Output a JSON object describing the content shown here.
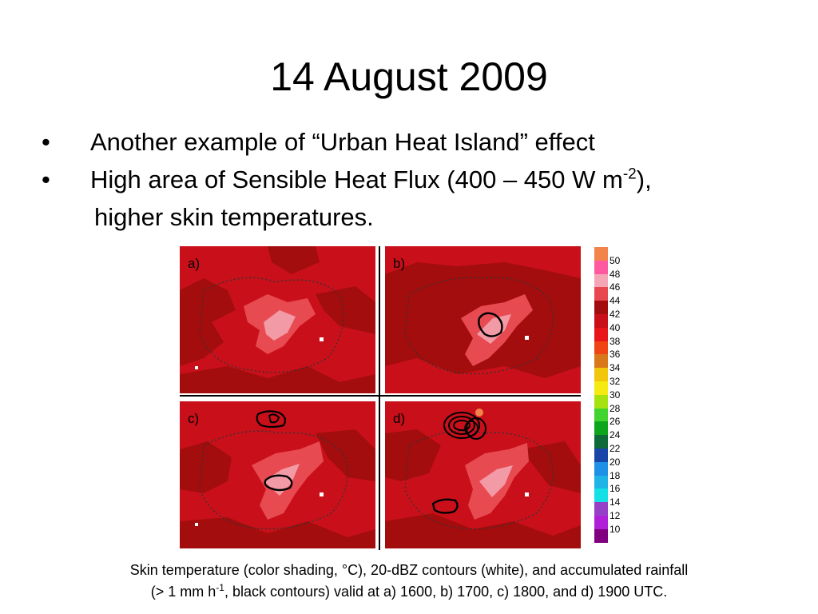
{
  "slide": {
    "title": "14 August 2009",
    "bullets": [
      {
        "mark": "•",
        "text": "Another example of “Urban Heat Island” effect"
      },
      {
        "mark": "•",
        "pre": "High area of Sensible Heat Flux (400 – 450 W m",
        "sup": "-2",
        "post": "),",
        "continuation": "higher skin temperatures."
      }
    ]
  },
  "panels": [
    {
      "label": "a)"
    },
    {
      "label": "b)"
    },
    {
      "label": "c)"
    },
    {
      "label": "d)"
    }
  ],
  "legend": {
    "ticks": [
      "50",
      "48",
      "46",
      "44",
      "42",
      "40",
      "38",
      "36",
      "34",
      "32",
      "30",
      "28",
      "26",
      "24",
      "22",
      "20",
      "18",
      "16",
      "14",
      "12",
      "10"
    ],
    "colors": [
      "#f2834a",
      "#ff5aa0",
      "#f5a6b6",
      "#e8474f",
      "#a30d0d",
      "#c9101a",
      "#e8161a",
      "#f04414",
      "#d8781a",
      "#f2c60a",
      "#f5ea12",
      "#a5e20f",
      "#42d42e",
      "#0da51c",
      "#0f6a3a",
      "#1a45a8",
      "#1e90e6",
      "#1eb4e6",
      "#14e0e6",
      "#9640c8",
      "#b020d8",
      "#800080"
    ]
  },
  "caption": {
    "line1": "Skin temperature (color shading, °C), 20-dBZ contours (white), and accumulated rainfall",
    "line2_pre": "(> 1 mm h",
    "line2_sup": "-1",
    "line2_post": ", black contours)  valid at a) 1600, b) 1700, c) 1800, and d) 1900 UTC."
  }
}
